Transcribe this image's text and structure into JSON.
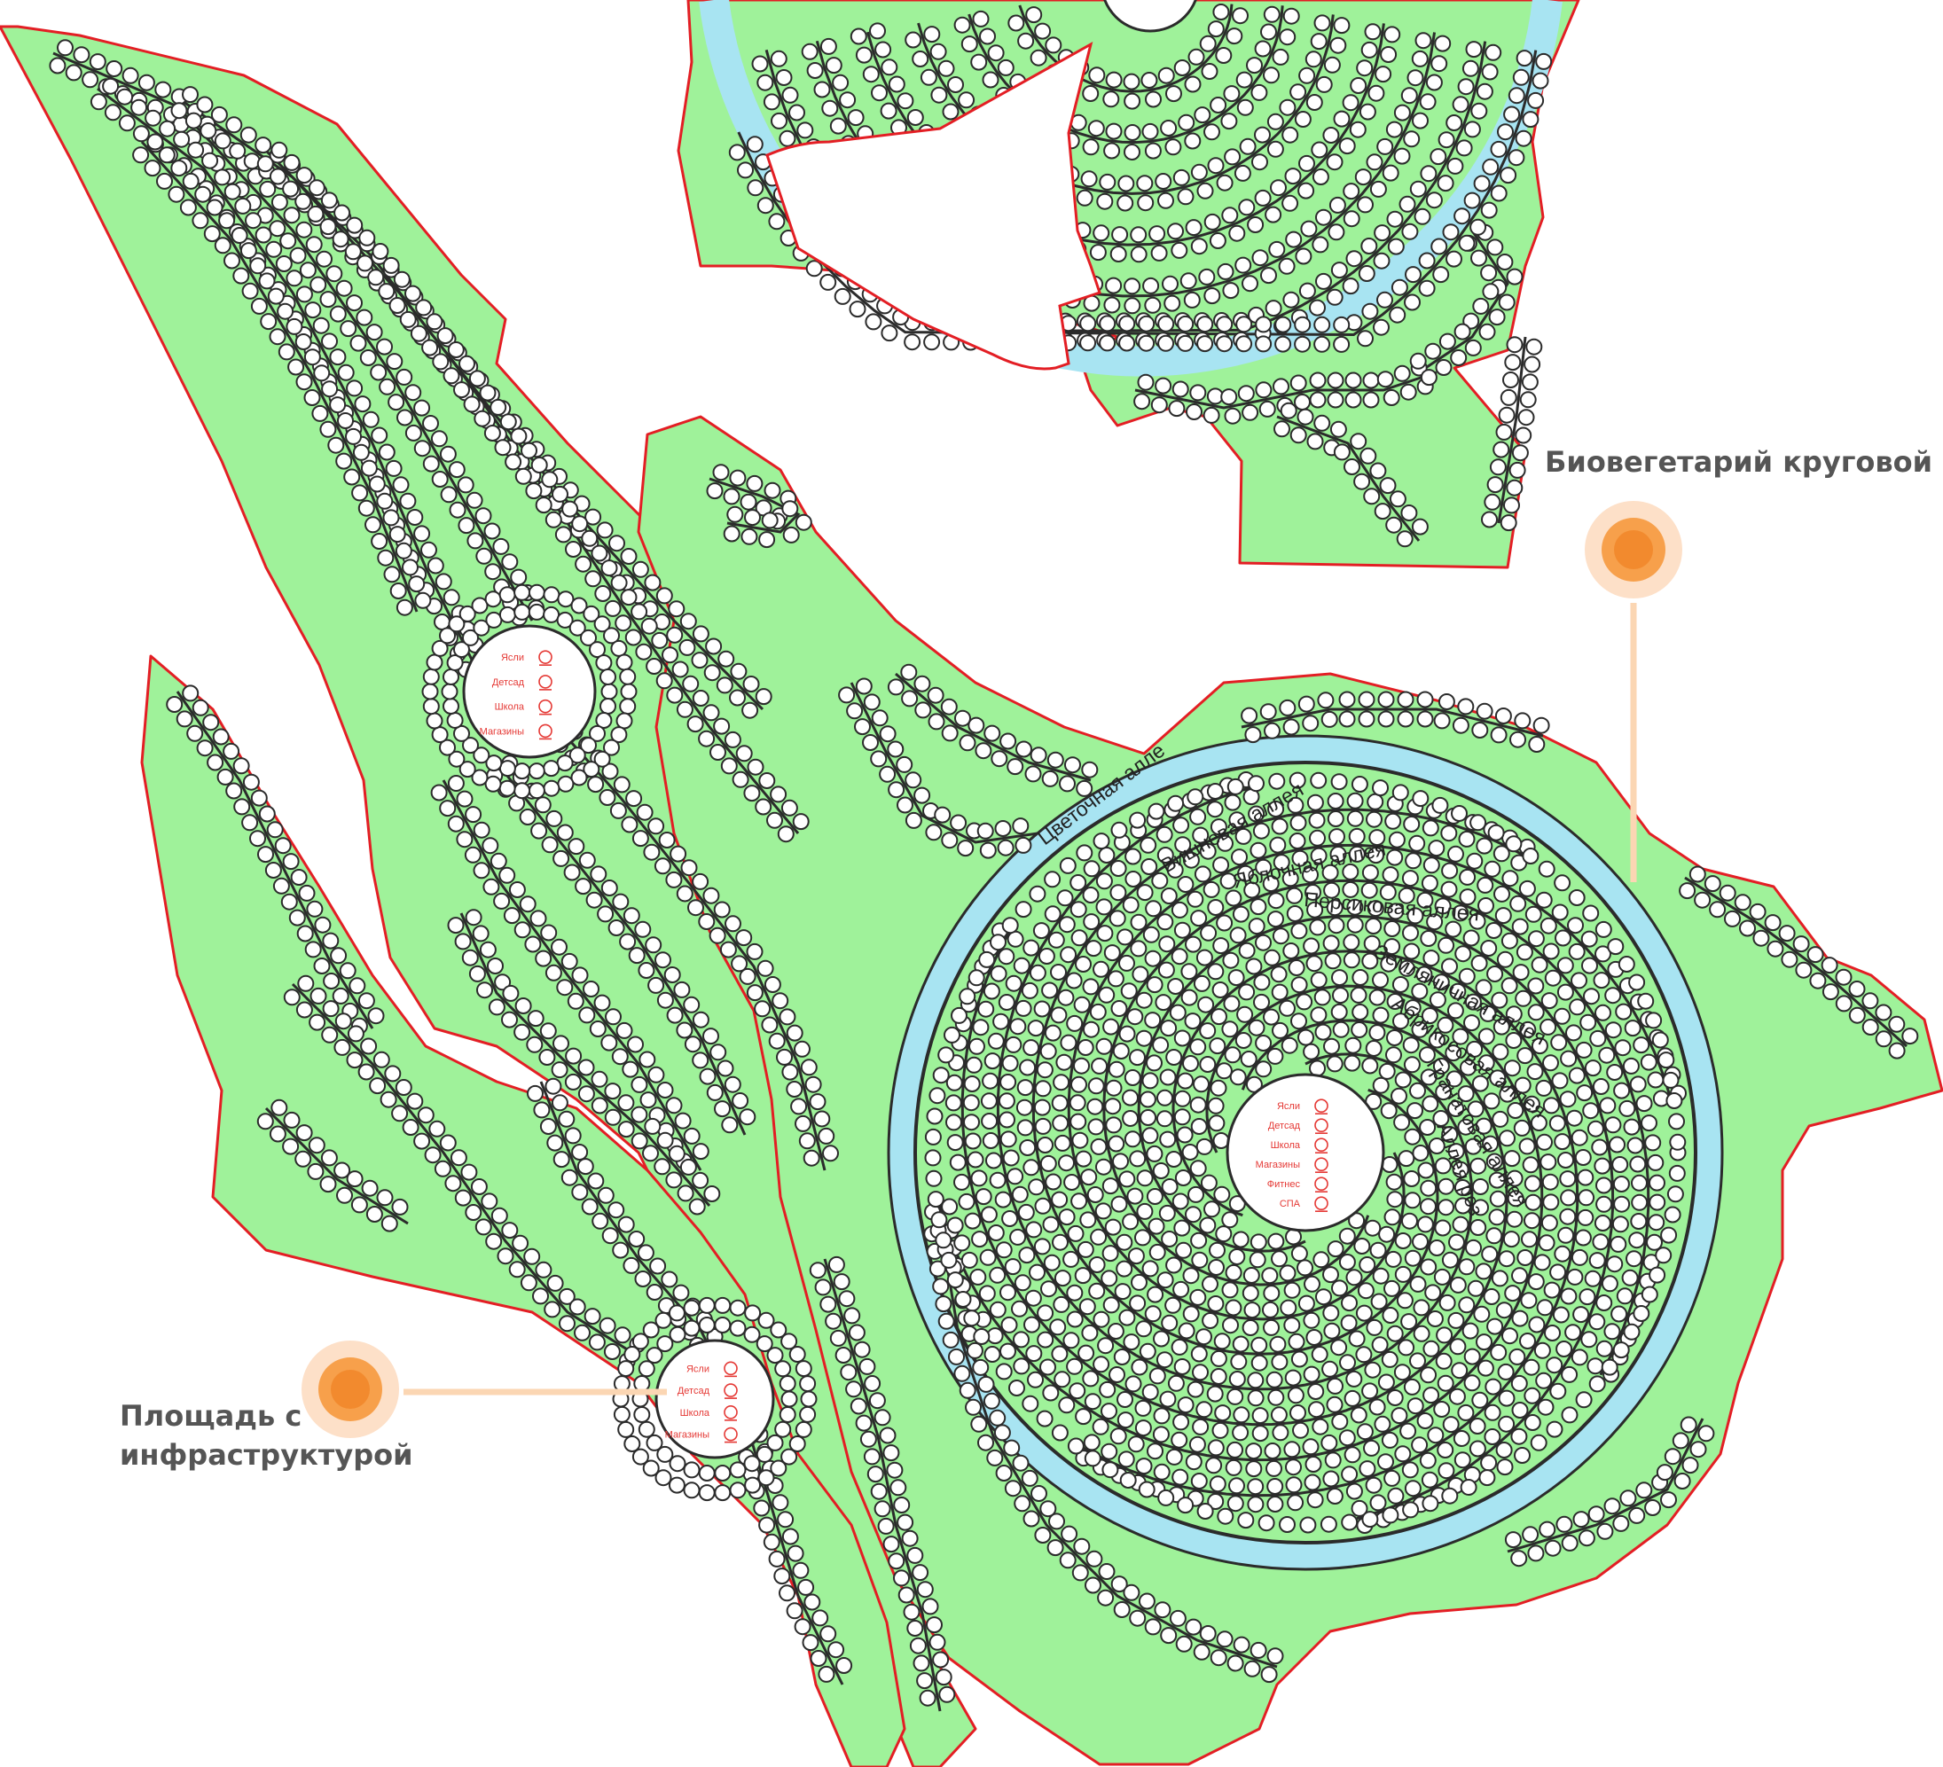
{
  "colors": {
    "land": "#9ff29a",
    "border": "#e31e24",
    "water": "#a8e4f2",
    "path": "#2b2b2b",
    "plot": "#ffffff",
    "marker": "#f28a2e",
    "marker_halo": "#fde0c8",
    "callout_line": "#fbd6b3",
    "hub_icons": "#e53935"
  },
  "callouts": {
    "circular": "Биовегетарий круговой",
    "square_line1": "Площадь с",
    "square_line2": "инфраструктурой"
  },
  "hub_top": {
    "items": [
      "Ясли",
      "Детсад",
      "Школа",
      "Магазины"
    ],
    "icons": [
      "baby-icon",
      "child-icon",
      "graduation-cap-icon",
      "shopping-cart-icon"
    ]
  },
  "hub_bottom": {
    "items": [
      "Ясли",
      "Детсад",
      "Школа",
      "Магазины"
    ],
    "icons": [
      "baby-icon",
      "child-icon",
      "graduation-cap-icon",
      "shopping-cart-icon"
    ]
  },
  "hub_spiral": {
    "items": [
      "Ясли",
      "Детсад",
      "Школа",
      "Магазины",
      "Фитнес",
      "СПА"
    ],
    "icons": [
      "baby-icon",
      "child-icon",
      "graduation-cap-icon",
      "shopping-cart-icon",
      "fitness-icon",
      "spa-icon"
    ]
  },
  "alleys": [
    "Цветочная аллея",
    "Вишневая аллея",
    "Яблочная аллея",
    "Персиковая аллея",
    "Земляничная аллея",
    "Абрикосовая аллея",
    "Гранатовая аллея",
    "Аллея роз"
  ]
}
